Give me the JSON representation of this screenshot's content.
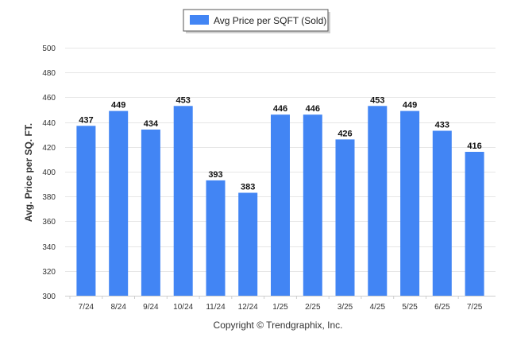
{
  "chart_data": {
    "type": "bar",
    "categories": [
      "7/24",
      "8/24",
      "9/24",
      "10/24",
      "11/24",
      "12/24",
      "1/25",
      "2/25",
      "3/25",
      "4/25",
      "5/25",
      "6/25",
      "7/25"
    ],
    "series": [
      {
        "name": "Avg Price per SQFT (Sold)",
        "values": [
          437,
          449,
          434,
          453,
          393,
          383,
          446,
          446,
          426,
          453,
          449,
          433,
          416
        ],
        "color": "#4285F4"
      }
    ],
    "data_labels": [
      "437",
      "449",
      "434",
      "453",
      "393",
      "383",
      "446",
      "446",
      "426",
      "453",
      "449",
      "433",
      "416"
    ],
    "ylabel": "Avg. Price per SQ. FT.",
    "xlabel": "",
    "ylim": [
      300,
      500
    ],
    "yticks": [
      "300",
      "320",
      "340",
      "360",
      "380",
      "400",
      "420",
      "440",
      "460",
      "480",
      "500"
    ],
    "grid": true,
    "legend_position": "top-center"
  },
  "footer": {
    "copyright": "Copyright © Trendgraphix, Inc."
  },
  "colors": {
    "bar": "#4285F4",
    "grid": "#e6e6e6",
    "axis": "#cfcfcf"
  }
}
